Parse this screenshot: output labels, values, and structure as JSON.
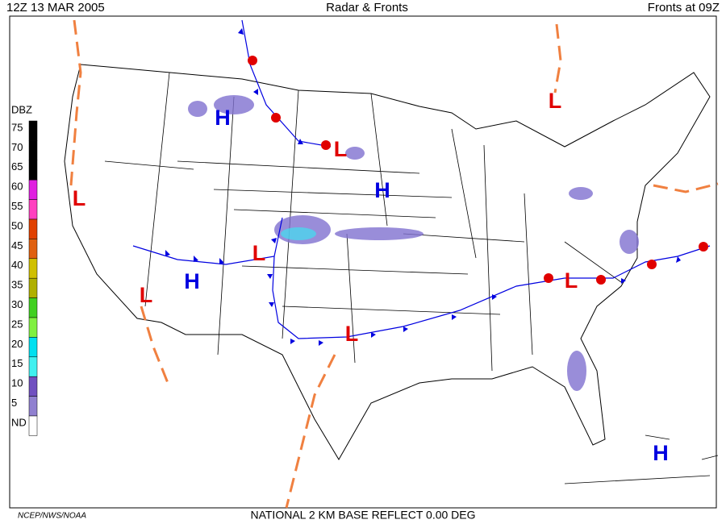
{
  "header": {
    "left": "12Z  13 MAR  2005",
    "center": "Radar & Fronts",
    "right": "Fronts at 09Z"
  },
  "legend": {
    "title": "DBZ",
    "levels": [
      {
        "label": "75",
        "color": "#000000"
      },
      {
        "label": "70",
        "color": "#000000"
      },
      {
        "label": "65",
        "color": "#000000"
      },
      {
        "label": "60",
        "color": "#e020e0"
      },
      {
        "label": "55",
        "color": "#ff40c0"
      },
      {
        "label": "50",
        "color": "#e04000"
      },
      {
        "label": "45",
        "color": "#e06010"
      },
      {
        "label": "40",
        "color": "#d0c000"
      },
      {
        "label": "35",
        "color": "#b0b000"
      },
      {
        "label": "30",
        "color": "#40d020"
      },
      {
        "label": "25",
        "color": "#80f040"
      },
      {
        "label": "20",
        "color": "#00e0f0"
      },
      {
        "label": "15",
        "color": "#40f0f0"
      },
      {
        "label": "10",
        "color": "#7050c0"
      },
      {
        "label": "5",
        "color": "#9080d0"
      },
      {
        "label": "ND",
        "color": "#ffffff"
      }
    ]
  },
  "centers": [
    {
      "label": "H"
    },
    {
      "label": "L"
    },
    {
      "label": "L"
    },
    {
      "label": "L"
    },
    {
      "label": "H"
    },
    {
      "label": "L"
    },
    {
      "label": "H"
    },
    {
      "label": "L"
    },
    {
      "label": "L"
    },
    {
      "label": "L"
    },
    {
      "label": "H"
    }
  ],
  "footer": {
    "credit": "NCEP/NWS/NOAA",
    "product": "NATIONAL 2 KM BASE REFLECT 0.00 DEG"
  }
}
